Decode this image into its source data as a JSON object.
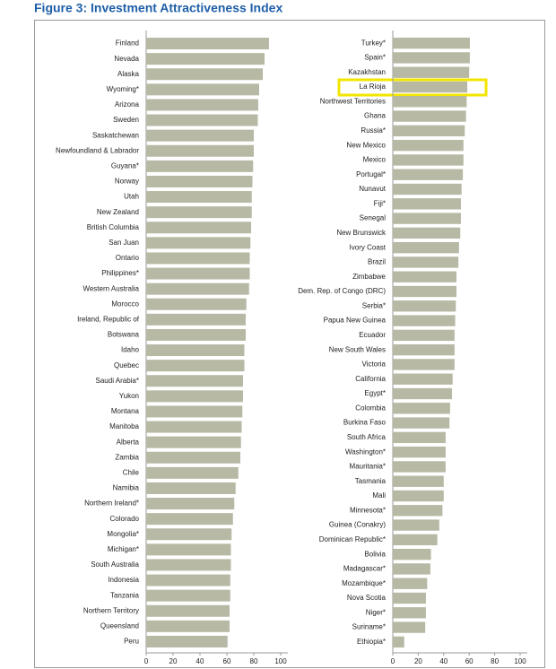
{
  "title": "Figure 3: Investment Attractiveness Index",
  "chart_data": [
    {
      "type": "bar",
      "orientation": "horizontal",
      "color": "#b7b9a5",
      "categories": [
        "Finland",
        "Nevada",
        "Alaska",
        "Wyoming*",
        "Arizona",
        "Sweden",
        "Saskatchewan",
        "Newfoundland & Labrador",
        "Guyana*",
        "Norway",
        "Utah",
        "New Zealand",
        "British Columbia",
        "San Juan",
        "Ontario",
        "Philippines*",
        "Western Australia",
        "Morocco",
        "Ireland, Republic of",
        "Botswana",
        "Idaho",
        "Quebec",
        "Saudi Arabia*",
        "Yukon",
        "Montana",
        "Manitoba",
        "Alberta",
        "Zambia",
        "Chile",
        "Namibia",
        "Northern Ireland*",
        "Colorado",
        "Mongolia*",
        "Michigan*",
        "South Australia",
        "Indonesia",
        "Tanzania",
        "Northern Territory",
        "Queensland",
        "Peru"
      ],
      "values": [
        91.3,
        88,
        86.7,
        84,
        83.3,
        83,
        80,
        80,
        79.5,
        79,
        78.5,
        78.5,
        78,
        77.5,
        77,
        77,
        76.5,
        74.5,
        74,
        74,
        73,
        73,
        72,
        72,
        71.5,
        71,
        70.5,
        70,
        68.5,
        66.5,
        65.5,
        64.5,
        63.5,
        63,
        63,
        62.5,
        62.5,
        62,
        62,
        60.5
      ],
      "xlim": [
        0,
        100
      ],
      "xticks": [
        0,
        20,
        40,
        60,
        80,
        100
      ]
    },
    {
      "type": "bar",
      "orientation": "horizontal",
      "color": "#b7b9a5",
      "categories": [
        "Turkey*",
        "Spain*",
        "Kazakhstan",
        "La Rioja",
        "Northwest Territories",
        "Ghana",
        "Russia*",
        "New Mexico",
        "Mexico",
        "Portugal*",
        "Nunavut",
        "Fiji*",
        "Senegal",
        "New Brunswick",
        "Ivory Coast",
        "Brazil",
        "Zimbabwe",
        "Dem. Rep. of Congo (DRC)",
        "Serbia*",
        "Papua New Guinea",
        "Ecuador",
        "New South Wales",
        "Victoria",
        "California",
        "Egypt*",
        "Colombia",
        "Burkina Faso",
        "South Africa",
        "Washington*",
        "Mauritania*",
        "Tasmania",
        "Mali",
        "Minnesota*",
        "Guinea (Conakry)",
        "Dominican Republic*",
        "Bolivia",
        "Madagascar*",
        "Mozambique*",
        "Nova Scotia",
        "Niger*",
        "Suriname*",
        "Ethiopia*"
      ],
      "values": [
        60.5,
        60.5,
        60,
        58.5,
        58,
        57.5,
        56.5,
        55.5,
        55.5,
        55,
        54,
        53.5,
        53.5,
        53,
        52,
        51.5,
        50,
        50,
        49.5,
        49,
        48.5,
        48.5,
        48.5,
        47,
        46.5,
        45,
        44.5,
        41.5,
        41.5,
        41.5,
        40,
        40,
        39,
        36.5,
        35,
        30,
        29.5,
        27,
        26,
        26,
        25.5,
        9
      ],
      "xlim": [
        0,
        100
      ],
      "xticks": [
        0,
        20,
        40,
        60,
        80,
        100
      ]
    }
  ]
}
